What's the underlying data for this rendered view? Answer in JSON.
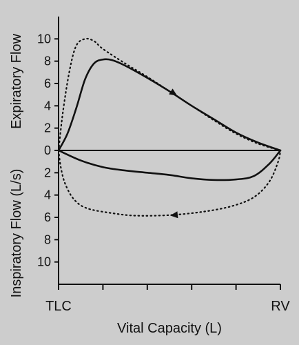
{
  "chart_data": {
    "type": "line",
    "title": "",
    "xlabel": "Vital Capacity (L)",
    "ylabel_upper": "Expiratory Flow",
    "ylabel_lower": "Inspiratory Flow (L/s)",
    "x_endpoint_labels": [
      "TLC",
      "RV"
    ],
    "xlim": [
      0,
      1
    ],
    "ylim": [
      -12,
      12
    ],
    "y_ticks": [
      10,
      8,
      6,
      4,
      2,
      0,
      -2,
      -4,
      -6,
      -8,
      -10
    ],
    "y_tick_labels": [
      "10",
      "8",
      "6",
      "4",
      "2",
      "0",
      "2",
      "4",
      "6",
      "8",
      "10"
    ],
    "grid": false,
    "colors": {
      "background": "#cdcdcd",
      "ink": "#111111"
    },
    "series": [
      {
        "style": "solid",
        "points": [
          [
            0,
            0
          ],
          [
            0.04,
            1.5
          ],
          [
            0.08,
            3.8
          ],
          [
            0.12,
            6.4
          ],
          [
            0.16,
            7.8
          ],
          [
            0.2,
            8.15
          ],
          [
            0.24,
            8.1
          ],
          [
            0.3,
            7.6
          ],
          [
            0.4,
            6.5
          ],
          [
            0.5,
            5.3
          ],
          [
            0.6,
            4.0
          ],
          [
            0.7,
            2.8
          ],
          [
            0.8,
            1.6
          ],
          [
            0.9,
            0.7
          ],
          [
            1.0,
            0
          ]
        ]
      },
      {
        "style": "solid",
        "points": [
          [
            0,
            0
          ],
          [
            0.1,
            -0.9
          ],
          [
            0.2,
            -1.5
          ],
          [
            0.3,
            -1.8
          ],
          [
            0.4,
            -2.0
          ],
          [
            0.5,
            -2.2
          ],
          [
            0.6,
            -2.5
          ],
          [
            0.7,
            -2.65
          ],
          [
            0.8,
            -2.6
          ],
          [
            0.88,
            -2.3
          ],
          [
            0.95,
            -1.2
          ],
          [
            1.0,
            0
          ]
        ]
      },
      {
        "style": "dotted",
        "points": [
          [
            0,
            0
          ],
          [
            0.02,
            3.5
          ],
          [
            0.05,
            7.2
          ],
          [
            0.08,
            9.4
          ],
          [
            0.12,
            10.0
          ],
          [
            0.16,
            9.8
          ],
          [
            0.2,
            9.1
          ],
          [
            0.3,
            7.8
          ],
          [
            0.4,
            6.6
          ],
          [
            0.5,
            5.3
          ],
          [
            0.6,
            4.0
          ],
          [
            0.7,
            2.7
          ],
          [
            0.8,
            1.5
          ],
          [
            0.9,
            0.6
          ],
          [
            1.0,
            0
          ]
        ]
      },
      {
        "style": "dotted",
        "points": [
          [
            0,
            0
          ],
          [
            0.01,
            -1.5
          ],
          [
            0.03,
            -3.0
          ],
          [
            0.07,
            -4.4
          ],
          [
            0.13,
            -5.2
          ],
          [
            0.25,
            -5.65
          ],
          [
            0.35,
            -5.85
          ],
          [
            0.5,
            -5.8
          ],
          [
            0.65,
            -5.5
          ],
          [
            0.78,
            -5.0
          ],
          [
            0.88,
            -4.2
          ],
          [
            0.95,
            -2.8
          ],
          [
            0.99,
            -1.0
          ],
          [
            1.0,
            0
          ]
        ]
      }
    ],
    "arrows": [
      {
        "series": 0,
        "at": [
          0.52,
          5.1
        ],
        "direction": "right"
      },
      {
        "series": 3,
        "at": [
          0.52,
          -5.8
        ],
        "direction": "left"
      }
    ]
  }
}
